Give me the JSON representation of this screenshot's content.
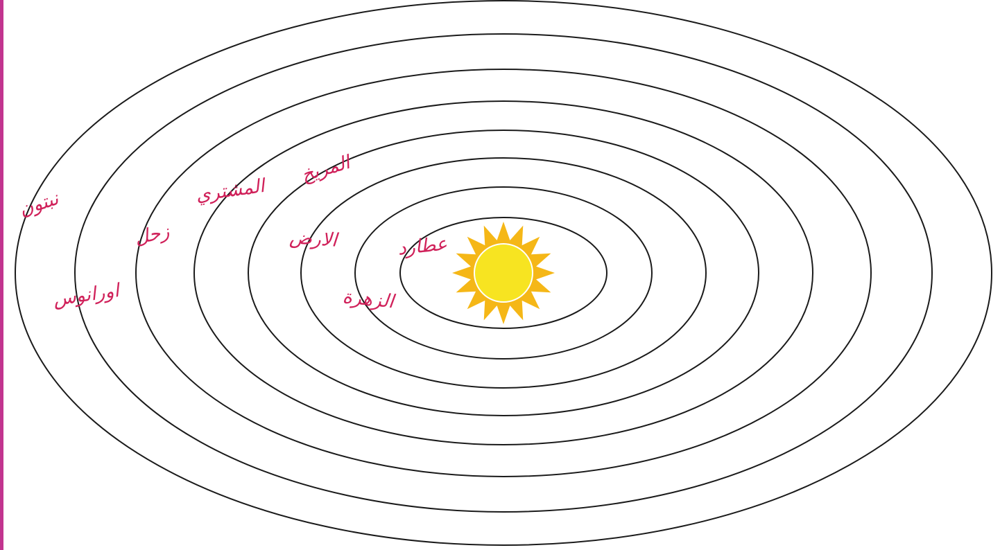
{
  "colors": {
    "frame": "#c2348f",
    "ink": "#d0215a",
    "orbit": "#1a1a1a",
    "sun_core": "#f7e421",
    "sun_rays": "#f5b717",
    "background": "#ffffff"
  },
  "sun": {
    "icon": "sun-icon"
  },
  "labels": {
    "mercury": "عطارد",
    "venus": "الزهرة",
    "earth": "الارض",
    "mars": "المريخ",
    "jupiter": "المشتري",
    "saturn": "زحل",
    "uranus": "اورانوس",
    "neptune": "نبتون"
  }
}
